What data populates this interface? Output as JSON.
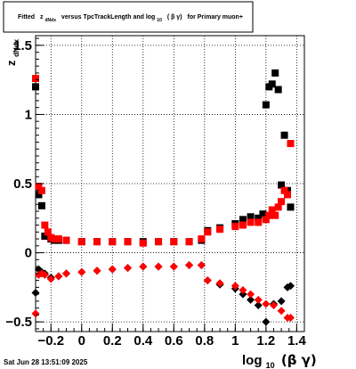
{
  "title": {
    "prefix": "Fitted",
    "z": "z",
    "z_sub": "dNdx",
    "middle": "versus TpcTrackLength and log",
    "log_sub": "10",
    "beta_gamma": "( β γ)",
    "suffix": "for Primary muon+"
  },
  "date_stamp": "Sat Jun 28 13:51:09 2025",
  "chart_data": {
    "type": "scatter",
    "title": "Fitted z_dNdx versus TpcTrackLength and log_10 ( β γ) for Primary muon+",
    "xlabel": {
      "main": "log",
      "sub": "10",
      "sym": "(β γ)"
    },
    "ylabel": {
      "main": "z",
      "sub": "dNdx"
    },
    "xlim": [
      -0.3,
      1.45
    ],
    "ylim": [
      -0.57,
      1.57
    ],
    "x_ticks": [
      -0.2,
      0,
      0.2,
      0.4,
      0.6,
      0.8,
      1,
      1.2,
      1.4
    ],
    "x_tick_labels": [
      "−0.2",
      "0",
      "0.2",
      "0.4",
      "0.6",
      "0.8",
      "1",
      "1.2",
      "1.4"
    ],
    "y_ticks": [
      -0.5,
      0,
      0.5,
      1,
      1.5
    ],
    "y_tick_labels": [
      "−0.5",
      "0",
      "0.5",
      "1",
      "1.5"
    ],
    "grid": true,
    "series": [
      {
        "marker": "square",
        "color": "#000000",
        "points": [
          [
            -0.3,
            1.2
          ],
          [
            -0.28,
            0.42
          ],
          [
            -0.26,
            0.34
          ],
          [
            -0.24,
            0.12
          ],
          [
            -0.22,
            0.12
          ],
          [
            -0.2,
            0.1
          ],
          [
            -0.18,
            0.09
          ],
          [
            -0.15,
            0.09
          ],
          [
            -0.1,
            0.09
          ],
          [
            0,
            0.08
          ],
          [
            0.1,
            0.08
          ],
          [
            0.2,
            0.08
          ],
          [
            0.3,
            0.08
          ],
          [
            0.4,
            0.08
          ],
          [
            0.5,
            0.08
          ],
          [
            0.6,
            0.08
          ],
          [
            0.7,
            0.08
          ],
          [
            0.78,
            0.09
          ],
          [
            0.82,
            0.16
          ],
          [
            0.9,
            0.18
          ],
          [
            1,
            0.21
          ],
          [
            1.05,
            0.24
          ],
          [
            1.1,
            0.26
          ],
          [
            1.15,
            0.25
          ],
          [
            1.18,
            0.28
          ],
          [
            1.2,
            1.07
          ],
          [
            1.22,
            1.2
          ],
          [
            1.24,
            1.22
          ],
          [
            1.26,
            1.3
          ],
          [
            1.28,
            1.18
          ],
          [
            1.3,
            0.49
          ],
          [
            1.32,
            0.85
          ],
          [
            1.34,
            0.45
          ],
          [
            1.36,
            0.33
          ]
        ]
      },
      {
        "marker": "square",
        "color": "#ff0000",
        "points": [
          [
            -0.3,
            1.26
          ],
          [
            -0.28,
            0.48
          ],
          [
            -0.26,
            0.45
          ],
          [
            -0.24,
            0.2
          ],
          [
            -0.22,
            0.15
          ],
          [
            -0.2,
            0.11
          ],
          [
            -0.18,
            0.1
          ],
          [
            -0.15,
            0.1
          ],
          [
            -0.1,
            0.09
          ],
          [
            0,
            0.08
          ],
          [
            0.1,
            0.08
          ],
          [
            0.2,
            0.08
          ],
          [
            0.3,
            0.08
          ],
          [
            0.4,
            0.07
          ],
          [
            0.5,
            0.08
          ],
          [
            0.6,
            0.08
          ],
          [
            0.7,
            0.08
          ],
          [
            0.78,
            0.1
          ],
          [
            0.82,
            0.15
          ],
          [
            0.9,
            0.17
          ],
          [
            1,
            0.19
          ],
          [
            1.05,
            0.2
          ],
          [
            1.1,
            0.22
          ],
          [
            1.15,
            0.22
          ],
          [
            1.2,
            0.24
          ],
          [
            1.22,
            0.27
          ],
          [
            1.24,
            0.31
          ],
          [
            1.26,
            0.27
          ],
          [
            1.28,
            0.33
          ],
          [
            1.3,
            0.37
          ],
          [
            1.32,
            0.45
          ],
          [
            1.34,
            0.42
          ],
          [
            1.36,
            0.79
          ]
        ]
      },
      {
        "marker": "diamond",
        "color": "#000000",
        "points": [
          [
            -0.3,
            -0.29
          ],
          [
            -0.28,
            -0.12
          ],
          [
            -0.26,
            -0.14
          ],
          [
            -0.24,
            -0.15
          ],
          [
            -0.2,
            -0.18
          ],
          [
            -0.15,
            -0.17
          ],
          [
            -0.1,
            -0.15
          ],
          [
            0,
            -0.14
          ],
          [
            0.1,
            -0.13
          ],
          [
            0.2,
            -0.12
          ],
          [
            0.3,
            -0.11
          ],
          [
            0.4,
            -0.1
          ],
          [
            0.5,
            -0.1
          ],
          [
            0.6,
            -0.1
          ],
          [
            0.7,
            -0.09
          ],
          [
            0.78,
            -0.09
          ],
          [
            0.82,
            -0.2
          ],
          [
            0.9,
            -0.23
          ],
          [
            1,
            -0.26
          ],
          [
            1.05,
            -0.3
          ],
          [
            1.1,
            -0.34
          ],
          [
            1.15,
            -0.38
          ],
          [
            1.2,
            -0.5
          ],
          [
            1.25,
            -0.37
          ],
          [
            1.3,
            -0.35
          ],
          [
            1.34,
            -0.25
          ],
          [
            1.36,
            -0.24
          ]
        ]
      },
      {
        "marker": "diamond",
        "color": "#ff0000",
        "points": [
          [
            -0.3,
            -0.44
          ],
          [
            -0.28,
            -0.16
          ],
          [
            -0.26,
            -0.15
          ],
          [
            -0.24,
            -0.16
          ],
          [
            -0.2,
            -0.19
          ],
          [
            -0.15,
            -0.17
          ],
          [
            -0.1,
            -0.15
          ],
          [
            0,
            -0.14
          ],
          [
            0.1,
            -0.13
          ],
          [
            0.2,
            -0.12
          ],
          [
            0.3,
            -0.11
          ],
          [
            0.4,
            -0.1
          ],
          [
            0.5,
            -0.1
          ],
          [
            0.6,
            -0.1
          ],
          [
            0.7,
            -0.09
          ],
          [
            0.78,
            -0.09
          ],
          [
            0.82,
            -0.2
          ],
          [
            0.9,
            -0.22
          ],
          [
            1,
            -0.24
          ],
          [
            1.05,
            -0.27
          ],
          [
            1.1,
            -0.3
          ],
          [
            1.15,
            -0.34
          ],
          [
            1.2,
            -0.37
          ],
          [
            1.25,
            -0.38
          ],
          [
            1.3,
            -0.42
          ],
          [
            1.34,
            -0.47
          ],
          [
            1.36,
            -0.47
          ]
        ]
      }
    ]
  }
}
